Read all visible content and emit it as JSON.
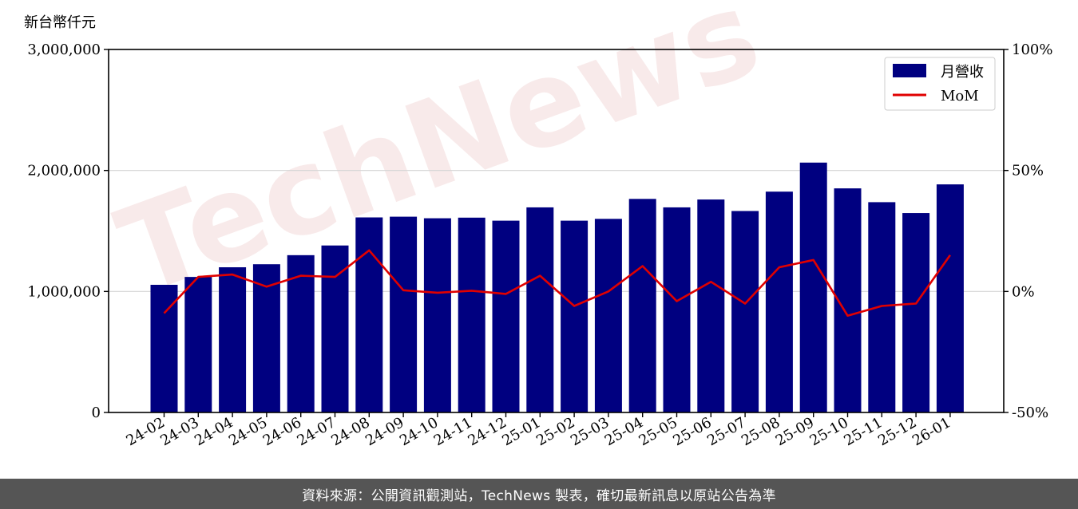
{
  "chart_data": {
    "type": "bar",
    "categories": [
      "24-02",
      "24-03",
      "24-04",
      "24-05",
      "24-06",
      "24-07",
      "24-08",
      "24-09",
      "24-10",
      "24-11",
      "24-12",
      "25-01",
      "25-02",
      "25-03",
      "25-04",
      "25-05",
      "25-06",
      "25-07",
      "25-08",
      "25-09",
      "25-10",
      "25-11",
      "25-12",
      "26-01"
    ],
    "series": [
      {
        "name": "月營收",
        "axis": "left",
        "type": "bar",
        "color": "#000080",
        "values": [
          1055000,
          1120000,
          1200000,
          1225000,
          1300000,
          1380000,
          1612000,
          1618000,
          1605000,
          1610000,
          1585000,
          1695000,
          1585000,
          1600000,
          1765000,
          1695000,
          1760000,
          1665000,
          1825000,
          2065000,
          1852000,
          1738000,
          1648000,
          1885000
        ]
      },
      {
        "name": "MoM",
        "axis": "right",
        "type": "line",
        "color": "#e00000",
        "values": [
          -9,
          6,
          7,
          2,
          6.5,
          6,
          17,
          0.5,
          -0.5,
          0.3,
          -1,
          6.5,
          -6,
          0,
          10.5,
          -4,
          4,
          -5,
          10,
          13,
          -10,
          -6,
          -5,
          15
        ]
      }
    ],
    "ylabel": "新台幣仟元",
    "ylim": [
      0,
      3000000
    ],
    "yticks": [
      "0",
      "1,000,000",
      "2,000,000",
      "3,000,000"
    ],
    "y2lim": [
      -50,
      100
    ],
    "y2ticks": [
      "-50%",
      "0%",
      "50%",
      "100%"
    ],
    "grid": true,
    "legend": "top-right"
  },
  "watermark": "TechNews",
  "footer": {
    "text": "資料來源：公開資訊觀測站，TechNews 製表，確切最新訊息以原站公告為準"
  }
}
